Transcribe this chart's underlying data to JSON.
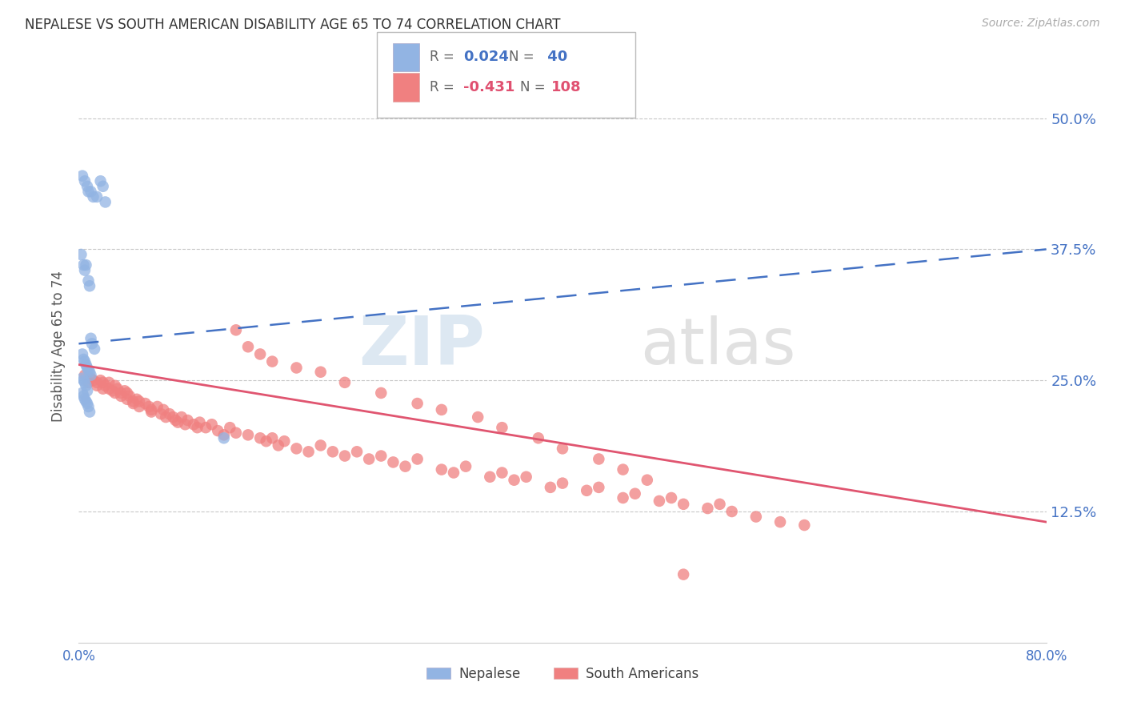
{
  "title": "NEPALESE VS SOUTH AMERICAN DISABILITY AGE 65 TO 74 CORRELATION CHART",
  "source": "Source: ZipAtlas.com",
  "ylabel": "Disability Age 65 to 74",
  "ytick_labels": [
    "12.5%",
    "25.0%",
    "37.5%",
    "50.0%"
  ],
  "ytick_values": [
    0.125,
    0.25,
    0.375,
    0.5
  ],
  "xlim": [
    0.0,
    0.8
  ],
  "ylim": [
    0.0,
    0.565
  ],
  "nepalese_color": "#92b4e3",
  "south_american_color": "#f08080",
  "trend_nepalese_color": "#4472c4",
  "trend_south_american_color": "#e05570",
  "nepalese_R": 0.024,
  "nepalese_N": 40,
  "south_R": -0.431,
  "south_N": 108,
  "nep_trend_x0": 0.0,
  "nep_trend_y0": 0.285,
  "nep_trend_x1": 0.8,
  "nep_trend_y1": 0.375,
  "south_trend_x0": 0.0,
  "south_trend_y0": 0.265,
  "south_trend_x1": 0.8,
  "south_trend_y1": 0.115,
  "watermark_zip": "ZIP",
  "watermark_atlas": "atlas",
  "background_color": "#ffffff",
  "grid_color": "#c8c8c8",
  "nepalese_pts_x": [
    0.003,
    0.005,
    0.007,
    0.008,
    0.01,
    0.012,
    0.015,
    0.018,
    0.02,
    0.022,
    0.002,
    0.004,
    0.005,
    0.006,
    0.008,
    0.009,
    0.01,
    0.011,
    0.013,
    0.003,
    0.004,
    0.005,
    0.006,
    0.007,
    0.008,
    0.009,
    0.01,
    0.003,
    0.004,
    0.005,
    0.006,
    0.007,
    0.003,
    0.004,
    0.005,
    0.006,
    0.007,
    0.008,
    0.009,
    0.12
  ],
  "nepalese_pts_y": [
    0.445,
    0.44,
    0.435,
    0.43,
    0.43,
    0.425,
    0.425,
    0.44,
    0.435,
    0.42,
    0.37,
    0.36,
    0.355,
    0.36,
    0.345,
    0.34,
    0.29,
    0.285,
    0.28,
    0.275,
    0.27,
    0.268,
    0.265,
    0.262,
    0.26,
    0.258,
    0.255,
    0.252,
    0.25,
    0.248,
    0.245,
    0.24,
    0.238,
    0.235,
    0.232,
    0.23,
    0.228,
    0.225,
    0.22,
    0.195
  ],
  "south_pts_x": [
    0.005,
    0.008,
    0.01,
    0.012,
    0.015,
    0.015,
    0.018,
    0.02,
    0.02,
    0.022,
    0.025,
    0.025,
    0.028,
    0.03,
    0.03,
    0.032,
    0.035,
    0.035,
    0.038,
    0.04,
    0.04,
    0.042,
    0.045,
    0.045,
    0.048,
    0.05,
    0.05,
    0.055,
    0.058,
    0.06,
    0.06,
    0.065,
    0.068,
    0.07,
    0.072,
    0.075,
    0.078,
    0.08,
    0.082,
    0.085,
    0.088,
    0.09,
    0.095,
    0.098,
    0.1,
    0.105,
    0.11,
    0.115,
    0.12,
    0.125,
    0.13,
    0.14,
    0.15,
    0.155,
    0.16,
    0.165,
    0.17,
    0.18,
    0.19,
    0.2,
    0.21,
    0.22,
    0.23,
    0.24,
    0.25,
    0.26,
    0.27,
    0.28,
    0.3,
    0.31,
    0.32,
    0.34,
    0.35,
    0.36,
    0.37,
    0.39,
    0.4,
    0.42,
    0.43,
    0.45,
    0.46,
    0.48,
    0.49,
    0.5,
    0.52,
    0.53,
    0.54,
    0.56,
    0.58,
    0.6,
    0.13,
    0.14,
    0.15,
    0.16,
    0.18,
    0.2,
    0.22,
    0.25,
    0.28,
    0.3,
    0.33,
    0.35,
    0.38,
    0.4,
    0.43,
    0.45,
    0.47,
    0.5
  ],
  "south_pts_y": [
    0.255,
    0.248,
    0.252,
    0.25,
    0.248,
    0.245,
    0.25,
    0.248,
    0.242,
    0.245,
    0.248,
    0.242,
    0.24,
    0.245,
    0.238,
    0.242,
    0.238,
    0.235,
    0.24,
    0.238,
    0.232,
    0.235,
    0.23,
    0.228,
    0.232,
    0.23,
    0.225,
    0.228,
    0.225,
    0.222,
    0.22,
    0.225,
    0.218,
    0.222,
    0.215,
    0.218,
    0.215,
    0.212,
    0.21,
    0.215,
    0.208,
    0.212,
    0.208,
    0.205,
    0.21,
    0.205,
    0.208,
    0.202,
    0.198,
    0.205,
    0.2,
    0.198,
    0.195,
    0.192,
    0.195,
    0.188,
    0.192,
    0.185,
    0.182,
    0.188,
    0.182,
    0.178,
    0.182,
    0.175,
    0.178,
    0.172,
    0.168,
    0.175,
    0.165,
    0.162,
    0.168,
    0.158,
    0.162,
    0.155,
    0.158,
    0.148,
    0.152,
    0.145,
    0.148,
    0.138,
    0.142,
    0.135,
    0.138,
    0.132,
    0.128,
    0.132,
    0.125,
    0.12,
    0.115,
    0.112,
    0.298,
    0.282,
    0.275,
    0.268,
    0.262,
    0.258,
    0.248,
    0.238,
    0.228,
    0.222,
    0.215,
    0.205,
    0.195,
    0.185,
    0.175,
    0.165,
    0.155,
    0.065
  ]
}
